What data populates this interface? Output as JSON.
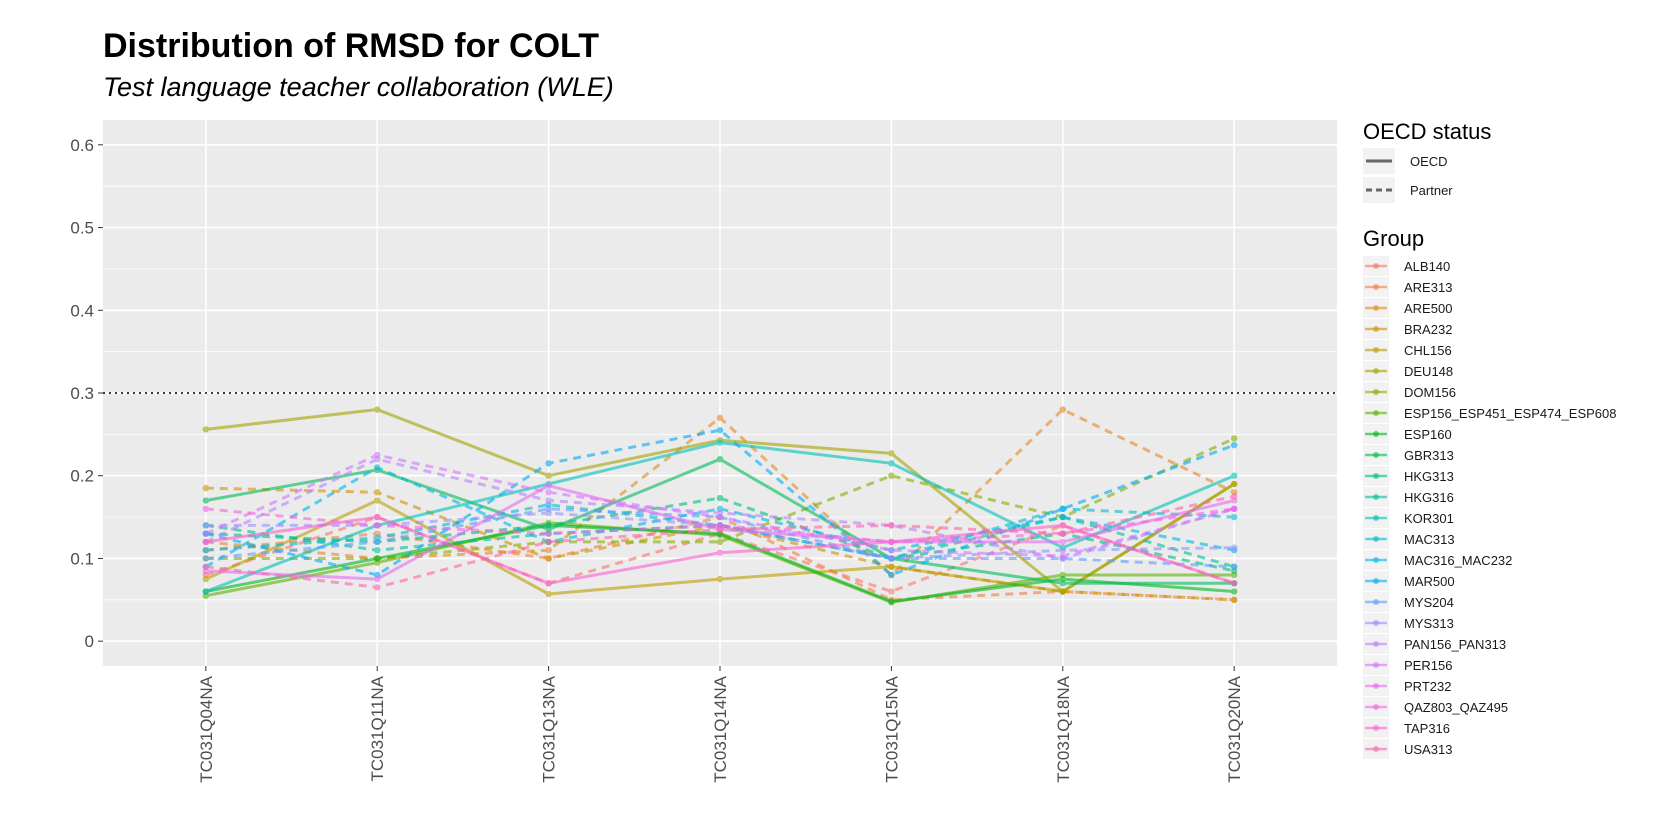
{
  "chart_data": {
    "type": "line",
    "title": "Distribution of RMSD for COLT",
    "subtitle": "Test language teacher collaboration (WLE)",
    "xlabel": "",
    "ylabel": "",
    "categories": [
      "TC031Q04NA",
      "TC031Q11NA",
      "TC031Q13NA",
      "TC031Q14NA",
      "TC031Q15NA",
      "TC031Q18NA",
      "TC031Q20NA"
    ],
    "ylim": [
      -0.03,
      0.63
    ],
    "yticks": [
      0,
      0.1,
      0.2,
      0.3,
      0.4,
      0.5,
      0.6
    ],
    "ytick_labels": [
      "0",
      "0.1",
      "0.2",
      "0.3",
      "0.4",
      "0.5",
      "0.6"
    ],
    "reference_line": 0.3,
    "grid": true,
    "linetype_legend": {
      "title": "OECD status",
      "items": [
        {
          "label": "OECD",
          "dash": "solid"
        },
        {
          "label": "Partner",
          "dash": "dashed"
        }
      ]
    },
    "color_legend_title": "Group",
    "legend_position": "right",
    "series": [
      {
        "name": "ALB140",
        "color": "#F8766D",
        "dash": "dashed",
        "values": [
          0.08,
          0.15,
          0.07,
          0.13,
          0.06,
          0.14,
          0.07
        ]
      },
      {
        "name": "ARE313",
        "color": "#EF7F49",
        "dash": "dashed",
        "values": [
          0.11,
          0.13,
          0.1,
          0.15,
          0.05,
          0.06,
          0.05
        ]
      },
      {
        "name": "ARE500",
        "color": "#E28A22",
        "dash": "dashed",
        "values": [
          0.12,
          0.1,
          0.11,
          0.27,
          0.08,
          0.28,
          0.18
        ]
      },
      {
        "name": "BRA232",
        "color": "#D19300",
        "dash": "dashed",
        "values": [
          0.185,
          0.18,
          0.1,
          0.14,
          0.09,
          0.06,
          0.05
        ]
      },
      {
        "name": "CHL156",
        "color": "#BC9D00",
        "dash": "solid",
        "values": [
          0.075,
          0.17,
          0.057,
          0.075,
          0.09,
          0.06,
          0.19
        ]
      },
      {
        "name": "DEU148",
        "color": "#A3A500",
        "dash": "solid",
        "values": [
          0.256,
          0.28,
          0.2,
          0.243,
          0.227,
          0.06,
          0.19
        ]
      },
      {
        "name": "DOM156",
        "color": "#85AD00",
        "dash": "dashed",
        "values": [
          0.1,
          0.1,
          0.12,
          0.12,
          0.2,
          0.15,
          0.245
        ]
      },
      {
        "name": "ESP156_ESP451_ESP474_ESP608",
        "color": "#5BB300",
        "dash": "solid",
        "values": [
          0.055,
          0.095,
          0.143,
          0.128,
          0.047,
          0.08,
          0.08
        ]
      },
      {
        "name": "ESP160",
        "color": "#00B81F",
        "dash": "solid",
        "values": [
          0.06,
          0.1,
          0.14,
          0.13,
          0.048,
          0.075,
          0.06
        ]
      },
      {
        "name": "GBR313",
        "color": "#00BC59",
        "dash": "solid",
        "values": [
          0.17,
          0.207,
          0.135,
          0.22,
          0.1,
          0.07,
          0.07
        ]
      },
      {
        "name": "HKG313",
        "color": "#00BF7D",
        "dash": "dashed",
        "values": [
          0.13,
          0.12,
          0.14,
          0.173,
          0.1,
          0.13,
          0.085
        ]
      },
      {
        "name": "HKG316",
        "color": "#00C19C",
        "dash": "dashed",
        "values": [
          0.14,
          0.11,
          0.13,
          0.14,
          0.1,
          0.15,
          0.09
        ]
      },
      {
        "name": "KOR301",
        "color": "#00C1B8",
        "dash": "solid",
        "values": [
          0.06,
          0.14,
          0.19,
          0.24,
          0.215,
          0.113,
          0.2
        ]
      },
      {
        "name": "MAC313",
        "color": "#00BDD0",
        "dash": "dashed",
        "values": [
          0.11,
          0.125,
          0.165,
          0.14,
          0.1,
          0.16,
          0.15
        ]
      },
      {
        "name": "MAC316_MAC232",
        "color": "#00B6E6",
        "dash": "dashed",
        "values": [
          0.09,
          0.21,
          0.12,
          0.16,
          0.11,
          0.15,
          0.11
        ]
      },
      {
        "name": "MAR500",
        "color": "#00ABF8",
        "dash": "dashed",
        "values": [
          0.13,
          0.08,
          0.215,
          0.255,
          0.08,
          0.16,
          0.237
        ]
      },
      {
        "name": "MYS204",
        "color": "#619CFF",
        "dash": "dashed",
        "values": [
          0.1,
          0.12,
          0.16,
          0.15,
          0.1,
          0.1,
          0.09
        ]
      },
      {
        "name": "MYS313",
        "color": "#9590FF",
        "dash": "dashed",
        "values": [
          0.14,
          0.14,
          0.155,
          0.14,
          0.1,
          0.11,
          0.113
        ]
      },
      {
        "name": "PAN156_PAN313",
        "color": "#B983FF",
        "dash": "dashed",
        "values": [
          0.12,
          0.22,
          0.17,
          0.155,
          0.14,
          0.1,
          0.16
        ]
      },
      {
        "name": "PER156",
        "color": "#D575FE",
        "dash": "dashed",
        "values": [
          0.13,
          0.225,
          0.18,
          0.15,
          0.11,
          0.103,
          0.16
        ]
      },
      {
        "name": "PRT232",
        "color": "#E76BF3",
        "dash": "solid",
        "values": [
          0.085,
          0.075,
          0.188,
          0.135,
          0.12,
          0.12,
          0.17
        ]
      },
      {
        "name": "QAZ803_QAZ495",
        "color": "#F564E3",
        "dash": "dashed",
        "values": [
          0.16,
          0.14,
          0.13,
          0.14,
          0.12,
          0.13,
          0.16
        ]
      },
      {
        "name": "TAP316",
        "color": "#FD61D1",
        "dash": "solid",
        "values": [
          0.12,
          0.15,
          0.07,
          0.107,
          0.12,
          0.14,
          0.07
        ]
      },
      {
        "name": "USA313",
        "color": "#FF64B0",
        "dash": "dashed",
        "values": [
          0.09,
          0.065,
          0.12,
          0.135,
          0.14,
          0.13,
          0.175
        ]
      }
    ]
  }
}
